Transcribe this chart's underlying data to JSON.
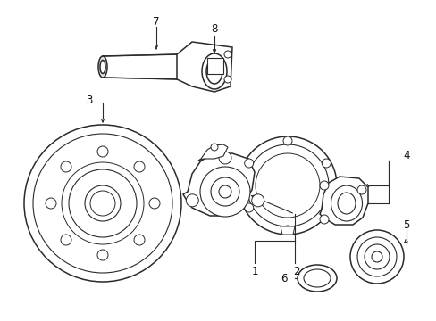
{
  "background_color": "#ffffff",
  "figsize": [
    4.89,
    3.6
  ],
  "dpi": 100,
  "line_color": "#2a2a2a",
  "label_color": "#111111",
  "label_fontsize": 8.5
}
